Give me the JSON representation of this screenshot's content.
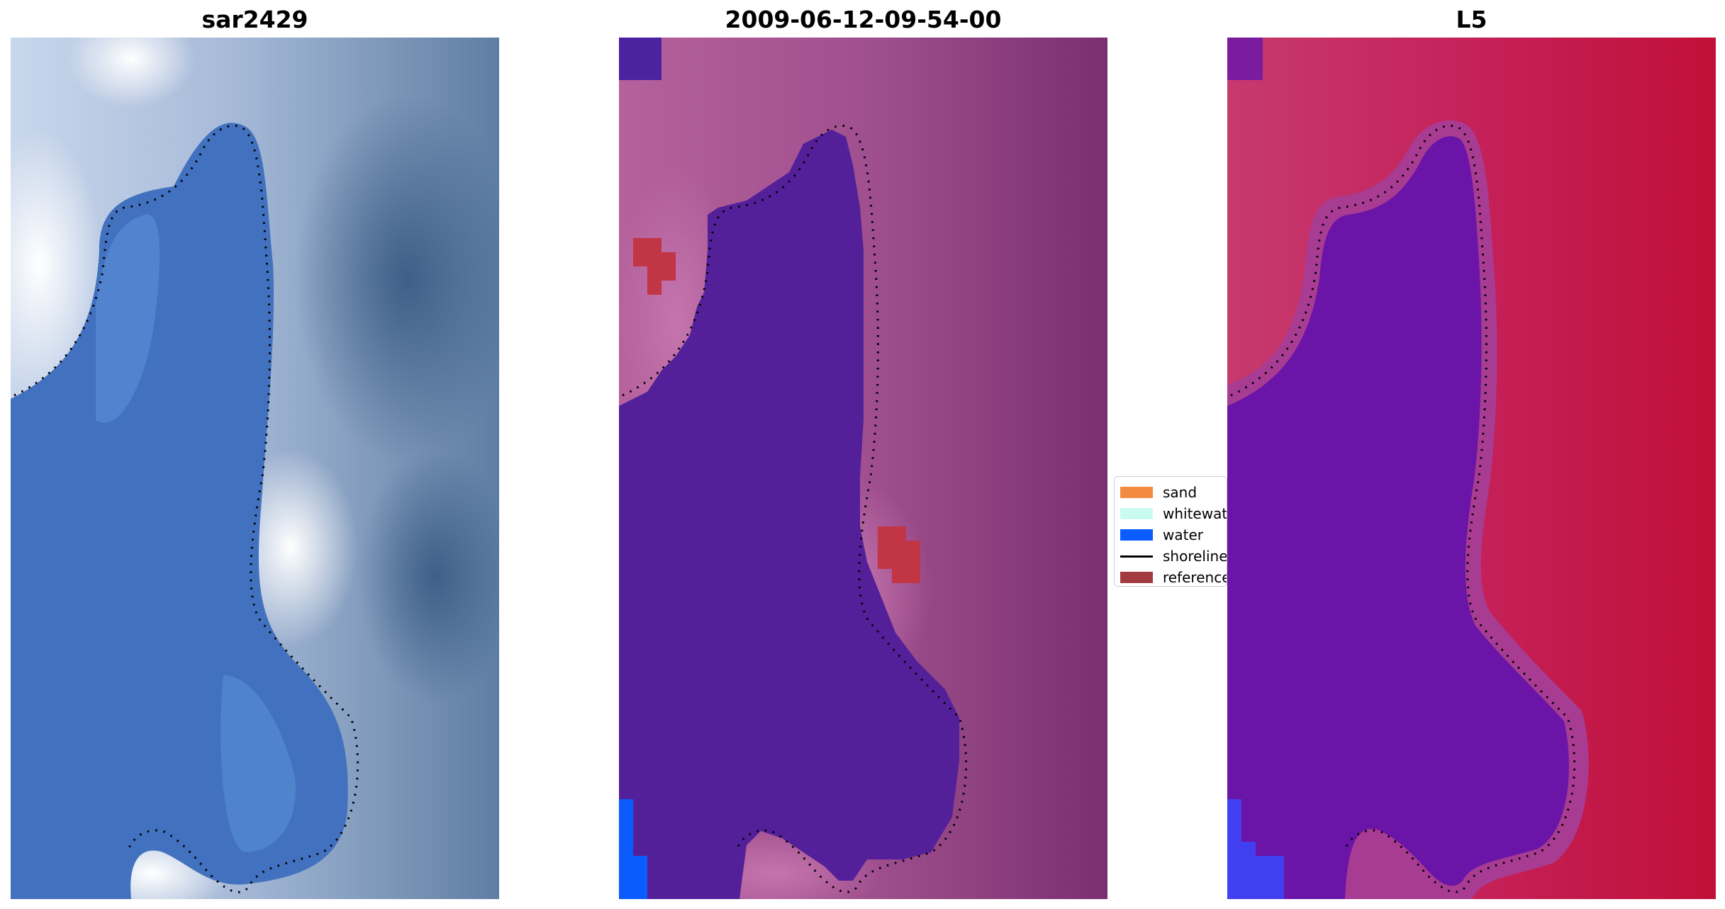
{
  "figure": {
    "panels": [
      {
        "title": "sar2429"
      },
      {
        "title": "2009-06-12-09-54-00"
      },
      {
        "title": "L5"
      }
    ],
    "legend": {
      "items": [
        {
          "label": "sand",
          "color": "#f28a3f",
          "kind": "patch"
        },
        {
          "label": "whitewater",
          "color": "#c9fbf2",
          "kind": "patch"
        },
        {
          "label": "water",
          "color": "#0a5cff",
          "kind": "patch"
        },
        {
          "label": "shoreline",
          "color": "#000000",
          "kind": "line"
        },
        {
          "label": "reference",
          "color": "#a23a3f",
          "kind": "patch"
        }
      ]
    },
    "colors": {
      "rgb_water": "#3f6fc0",
      "rgb_land": "#9db2d2",
      "classified_water": "#542096",
      "classified_land": "#b65c98",
      "reference_patch": "#c23545",
      "water_patch": "#0a5cff",
      "mndwi_land": "#c3143c",
      "mndwi_water": "#6414a0"
    }
  }
}
